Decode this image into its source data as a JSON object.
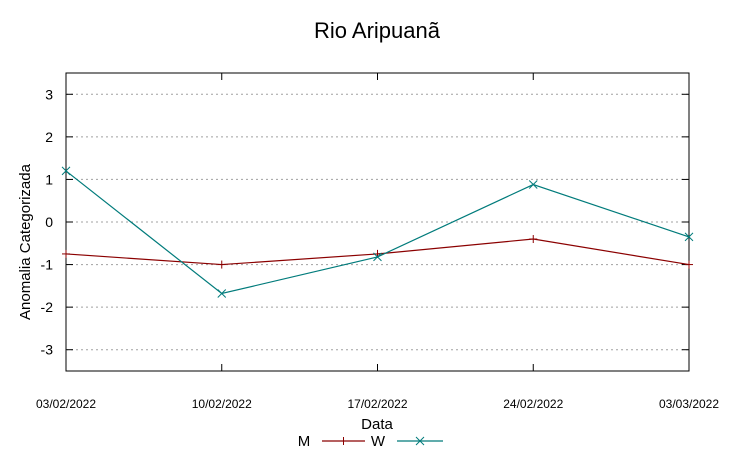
{
  "chart_data": {
    "type": "line",
    "title": "Rio Aripuanã",
    "xlabel": "Data",
    "ylabel": "Anomalia Categorizada",
    "categories": [
      "03/02/2022",
      "10/02/2022",
      "17/02/2022",
      "24/02/2022",
      "03/03/2022"
    ],
    "ylim": [
      -3.5,
      3.5
    ],
    "yticks": [
      3,
      2,
      1,
      0,
      -1,
      -2,
      -3
    ],
    "ytick_labels": [
      "3",
      "2",
      "1",
      "0",
      "-1",
      "-2",
      "-3"
    ],
    "grid": true,
    "legend_position": "bottom",
    "series": [
      {
        "name": "M",
        "color": "#8b0000",
        "marker": "plus",
        "values": [
          -0.75,
          -1.0,
          -0.75,
          -0.4,
          -1.0
        ]
      },
      {
        "name": "W",
        "color": "#007b7b",
        "marker": "cross",
        "values": [
          1.2,
          -1.68,
          -0.82,
          0.88,
          -0.35
        ]
      }
    ]
  }
}
